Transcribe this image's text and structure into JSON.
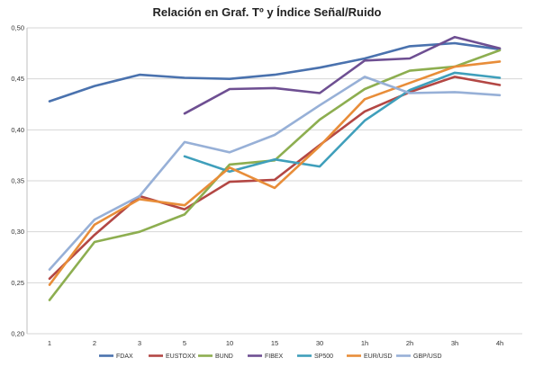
{
  "chart_data": {
    "type": "line",
    "title": "Relación en Graf. Tº y Índice Señal/Ruido",
    "xlabel": "",
    "ylabel": "",
    "categories": [
      "1",
      "2",
      "3",
      "5",
      "10",
      "15",
      "30",
      "1h",
      "2h",
      "3h",
      "4h"
    ],
    "ylim": [
      0.2,
      0.5
    ],
    "yticks": [
      "0,20",
      "0,25",
      "0,30",
      "0,35",
      "0,40",
      "0,45",
      "0,50"
    ],
    "grid": true,
    "legend_position": "bottom",
    "series": [
      {
        "name": "FDAX",
        "color": "#4a72ae",
        "values": [
          0.428,
          0.443,
          0.454,
          0.451,
          0.45,
          0.454,
          0.461,
          0.47,
          0.482,
          0.485,
          0.479
        ]
      },
      {
        "name": "EUSTOXX",
        "color": "#b34744",
        "values": [
          0.254,
          0.297,
          0.335,
          0.322,
          0.349,
          0.351,
          0.385,
          0.418,
          0.437,
          0.452,
          0.444
        ]
      },
      {
        "name": "BUND",
        "color": "#8dae50",
        "values": [
          0.233,
          0.29,
          0.3,
          0.317,
          0.366,
          0.37,
          0.41,
          0.44,
          0.458,
          0.462,
          0.478
        ]
      },
      {
        "name": "FIBEX",
        "color": "#6e4f92",
        "values": [
          null,
          null,
          null,
          0.416,
          0.44,
          0.441,
          0.436,
          0.468,
          0.47,
          0.491,
          0.48
        ]
      },
      {
        "name": "SP500",
        "color": "#3f9fbb",
        "values": [
          null,
          null,
          null,
          0.374,
          0.359,
          0.371,
          0.364,
          0.409,
          0.439,
          0.456,
          0.451
        ]
      },
      {
        "name": "EUR/USD",
        "color": "#e88d39",
        "values": [
          0.248,
          0.307,
          0.332,
          0.326,
          0.363,
          0.343,
          0.384,
          0.43,
          0.446,
          0.462,
          0.467
        ]
      },
      {
        "name": "GBP/USD",
        "color": "#97b0d7",
        "values": [
          0.263,
          0.312,
          0.335,
          0.388,
          0.378,
          0.395,
          0.424,
          0.452,
          0.436,
          0.437,
          0.434
        ]
      }
    ]
  }
}
